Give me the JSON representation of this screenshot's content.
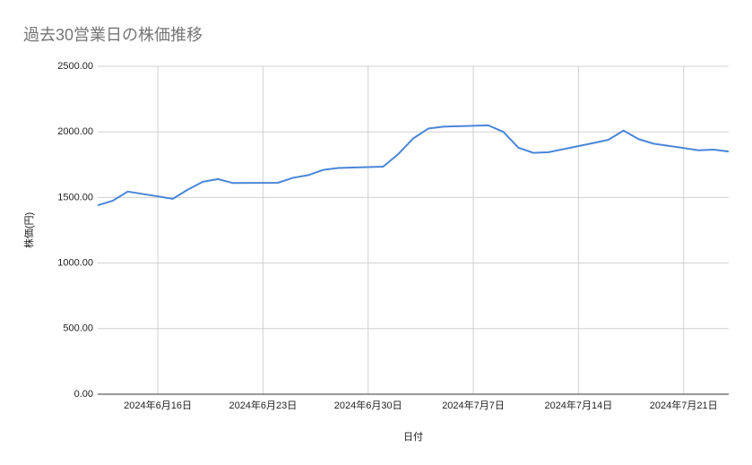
{
  "chart_data": {
    "type": "line",
    "title": "過去30営業日の株価推移",
    "x_label": "日付",
    "y_label": "株価(円)",
    "x": [
      "2024-06-12",
      "2024-06-13",
      "2024-06-14",
      "2024-06-17",
      "2024-06-18",
      "2024-06-19",
      "2024-06-20",
      "2024-06-21",
      "2024-06-24",
      "2024-06-25",
      "2024-06-26",
      "2024-06-27",
      "2024-06-28",
      "2024-07-01",
      "2024-07-02",
      "2024-07-03",
      "2024-07-04",
      "2024-07-05",
      "2024-07-08",
      "2024-07-09",
      "2024-07-10",
      "2024-07-11",
      "2024-07-12",
      "2024-07-15",
      "2024-07-16",
      "2024-07-17",
      "2024-07-18",
      "2024-07-19",
      "2024-07-22",
      "2024-07-23",
      "2024-07-24"
    ],
    "series": [
      {
        "name": "株価",
        "color": "#4a86d8",
        "values": [
          1440,
          1475,
          1545,
          1490,
          1560,
          1620,
          1640,
          1610,
          1612,
          1650,
          1670,
          1710,
          1725,
          1735,
          1830,
          1950,
          2025,
          2040,
          2050,
          2000,
          1880,
          1840,
          1845,
          1915,
          1940,
          2010,
          1945,
          1910,
          1860,
          1865,
          1850
        ]
      }
    ],
    "xlim": [
      "2024-06-12",
      "2024-07-24"
    ],
    "xticks": [
      {
        "value": "2024-06-16",
        "label": "2024年6月16日"
      },
      {
        "value": "2024-06-23",
        "label": "2024年6月23日"
      },
      {
        "value": "2024-06-30",
        "label": "2024年6月30日"
      },
      {
        "value": "2024-07-07",
        "label": "2024年7月7日"
      },
      {
        "value": "2024-07-14",
        "label": "2024年7月14日"
      },
      {
        "value": "2024-07-21",
        "label": "2024年7月21日"
      }
    ],
    "ylim": [
      0,
      2500
    ],
    "yticks": [
      {
        "value": 0,
        "label": "0.00"
      },
      {
        "value": 500,
        "label": "500.00"
      },
      {
        "value": 1000,
        "label": "1000.00"
      },
      {
        "value": 1500,
        "label": "1500.00"
      },
      {
        "value": 2000,
        "label": "2000.00"
      },
      {
        "value": 2500,
        "label": "2500.00"
      }
    ],
    "grid": true
  }
}
